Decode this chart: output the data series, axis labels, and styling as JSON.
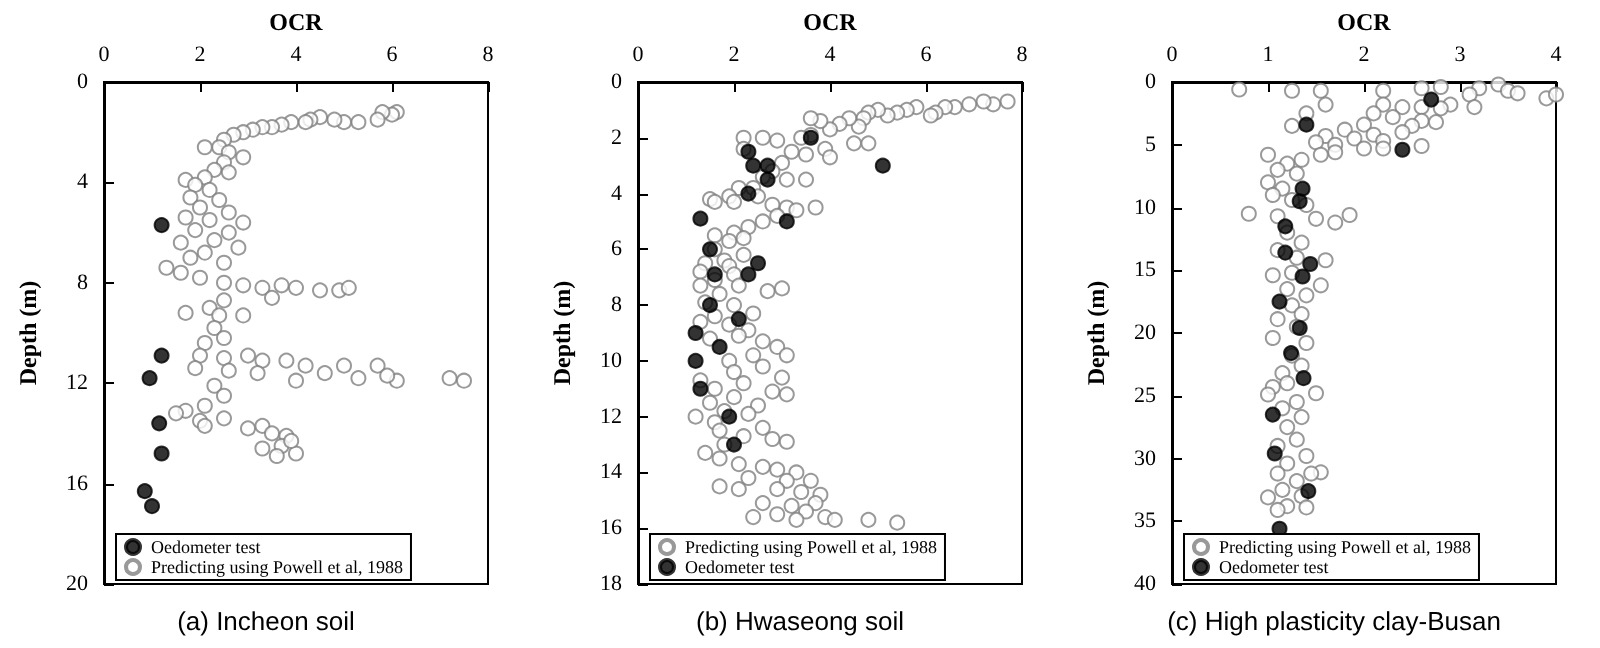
{
  "chart_data": [
    {
      "type": "scatter",
      "title": "(a) Incheon soil",
      "xlabel": "OCR",
      "ylabel": "Depth (m)",
      "xlim": [
        0,
        8
      ],
      "xticks": [
        0,
        2,
        4,
        6,
        8
      ],
      "ylim": [
        20,
        0
      ],
      "yticks": [
        0,
        4,
        8,
        12,
        16,
        20
      ],
      "grid": false,
      "legend": "bottom",
      "marker": "circle",
      "series": [
        {
          "name": "Oedometer test",
          "color": "#000000",
          "x": [
            1.2,
            1.2,
            0.95,
            1.15,
            1.2,
            0.85,
            1.0
          ],
          "values": [
            5.7,
            10.9,
            11.8,
            13.6,
            14.8,
            16.3,
            16.9
          ]
        },
        {
          "name": "Predicting using Powell et al, 1988",
          "color": "#808080",
          "x": [
            6.1,
            6.0,
            5.8,
            5.7,
            5.3,
            5.0,
            4.8,
            4.5,
            4.3,
            4.2,
            3.9,
            3.7,
            3.5,
            3.3,
            3.1,
            2.9,
            2.7,
            2.5,
            2.4,
            2.1,
            2.6,
            2.9,
            2.5,
            2.3,
            2.6,
            2.1,
            1.7,
            1.9,
            2.2,
            1.8,
            2.4,
            2.0,
            2.6,
            1.7,
            2.2,
            2.9,
            1.9,
            2.6,
            2.3,
            1.6,
            2.8,
            2.1,
            1.8,
            2.5,
            1.3,
            1.6,
            2.0,
            2.5,
            2.9,
            3.3,
            3.7,
            4.0,
            4.5,
            4.9,
            5.1,
            3.5,
            2.5,
            2.2,
            1.7,
            2.4,
            2.9,
            2.3,
            2.5,
            2.1,
            2.0,
            2.5,
            3.0,
            3.3,
            3.8,
            4.2,
            4.6,
            5.0,
            5.3,
            5.7,
            6.1,
            5.9,
            7.2,
            7.5,
            4.0,
            3.2,
            2.6,
            1.9,
            2.3,
            2.5,
            2.1,
            1.7,
            1.5,
            2.0,
            2.5,
            2.1,
            3.0,
            3.3,
            3.5,
            3.8,
            3.7,
            3.3,
            3.6,
            4.0,
            3.9
          ],
          "values": [
            1.2,
            1.3,
            1.2,
            1.5,
            1.6,
            1.6,
            1.5,
            1.4,
            1.5,
            1.6,
            1.6,
            1.7,
            1.8,
            1.8,
            1.9,
            2.0,
            2.1,
            2.3,
            2.6,
            2.6,
            2.8,
            3.0,
            3.2,
            3.5,
            3.6,
            3.8,
            3.9,
            4.1,
            4.3,
            4.6,
            4.7,
            5.0,
            5.2,
            5.4,
            5.5,
            5.6,
            5.9,
            6.0,
            6.3,
            6.4,
            6.6,
            6.8,
            7.0,
            7.2,
            7.4,
            7.6,
            7.8,
            8.0,
            8.1,
            8.2,
            8.1,
            8.2,
            8.3,
            8.3,
            8.2,
            8.6,
            8.7,
            9.0,
            9.2,
            9.3,
            9.3,
            9.8,
            10.2,
            10.4,
            10.9,
            11.0,
            10.9,
            11.1,
            11.1,
            11.3,
            11.6,
            11.3,
            11.8,
            11.3,
            11.9,
            11.7,
            11.8,
            11.9,
            11.9,
            11.6,
            11.5,
            11.4,
            12.1,
            12.5,
            12.9,
            13.1,
            13.2,
            13.5,
            13.4,
            13.7,
            13.8,
            13.7,
            14.0,
            14.1,
            14.5,
            14.6,
            14.9,
            14.8,
            14.3
          ]
        }
      ]
    },
    {
      "type": "scatter",
      "title": "(b) Hwaseong soil",
      "xlabel": "OCR",
      "ylabel": "Depth (m)",
      "xlim": [
        0,
        8
      ],
      "xticks": [
        0,
        2,
        4,
        6,
        8
      ],
      "ylim": [
        18,
        0
      ],
      "yticks": [
        0,
        2,
        4,
        6,
        8,
        10,
        12,
        14,
        16,
        18
      ],
      "grid": false,
      "legend": "bottom",
      "marker": "circle",
      "series": [
        {
          "name": "Predicting using Powell et al, 1988",
          "color": "#808080",
          "x": [
            7.7,
            7.4,
            7.2,
            6.9,
            6.6,
            6.4,
            6.2,
            6.1,
            5.8,
            5.6,
            5.4,
            5.2,
            5.0,
            4.8,
            4.7,
            4.6,
            4.4,
            4.2,
            4.0,
            3.8,
            3.6,
            3.6,
            3.4,
            4.5,
            4.8,
            3.9,
            4.0,
            3.5,
            3.2,
            2.9,
            2.6,
            2.2,
            2.2,
            3.0,
            2.8,
            3.1,
            2.6,
            3.5,
            2.4,
            2.1,
            2.5,
            1.9,
            1.5,
            1.6,
            2.0,
            2.8,
            3.1,
            3.3,
            3.7,
            2.9,
            2.6,
            2.3,
            2.0,
            1.6,
            1.9,
            2.2,
            1.6,
            2.2,
            1.8,
            1.4,
            1.9,
            1.3,
            2.0,
            1.6,
            1.3,
            2.1,
            2.7,
            3.0,
            1.7,
            1.4,
            2.0,
            2.4,
            1.6,
            1.3,
            1.9,
            2.3,
            2.1,
            1.5,
            2.6,
            2.9,
            3.1,
            2.4,
            1.9,
            2.6,
            2.0,
            3.0,
            1.3,
            2.2,
            1.6,
            2.8,
            3.1,
            2.0,
            1.5,
            2.5,
            1.8,
            2.3,
            1.2,
            1.6,
            2.6,
            1.7,
            2.2,
            2.8,
            3.1,
            1.8,
            1.4,
            1.7,
            2.1,
            2.6,
            2.9,
            3.3,
            2.3,
            3.1,
            3.6,
            1.7,
            2.1,
            2.9,
            3.4,
            3.8,
            3.7,
            3.2,
            2.6,
            3.5,
            2.9,
            2.4,
            3.3,
            3.9,
            4.1,
            4.8,
            5.4
          ],
          "values": [
            0.7,
            0.8,
            0.7,
            0.8,
            0.9,
            0.9,
            1.1,
            1.2,
            0.9,
            1.0,
            1.1,
            1.2,
            1.0,
            1.1,
            1.3,
            1.6,
            1.3,
            1.5,
            1.7,
            1.4,
            1.3,
            1.9,
            2.0,
            2.2,
            2.2,
            2.4,
            2.7,
            2.6,
            2.5,
            2.1,
            2.0,
            2.0,
            2.4,
            2.9,
            3.2,
            3.5,
            3.4,
            3.5,
            3.8,
            3.8,
            4.1,
            4.1,
            4.2,
            4.3,
            4.3,
            4.4,
            4.5,
            4.6,
            4.5,
            4.8,
            5.0,
            5.2,
            5.4,
            5.5,
            5.7,
            5.6,
            6.0,
            6.2,
            6.4,
            6.5,
            6.6,
            6.8,
            6.9,
            7.1,
            7.3,
            7.3,
            7.5,
            7.4,
            7.6,
            7.9,
            8.0,
            8.3,
            8.4,
            8.6,
            8.7,
            8.9,
            9.1,
            9.2,
            9.3,
            9.5,
            9.8,
            9.8,
            10.0,
            10.2,
            10.4,
            10.6,
            10.7,
            10.8,
            11.0,
            11.1,
            11.2,
            11.3,
            11.5,
            11.6,
            11.8,
            11.9,
            12.0,
            12.2,
            12.4,
            12.5,
            12.7,
            12.8,
            12.9,
            13.0,
            13.3,
            13.5,
            13.7,
            13.8,
            13.9,
            14.0,
            14.2,
            14.3,
            14.3,
            14.5,
            14.6,
            14.6,
            14.7,
            14.8,
            15.1,
            15.2,
            15.1,
            15.4,
            15.5,
            15.6,
            15.7,
            15.6,
            15.7,
            15.7,
            15.8
          ]
        },
        {
          "name": "Oedometer test",
          "color": "#000000",
          "x": [
            3.6,
            2.3,
            2.4,
            2.7,
            2.7,
            5.1,
            2.3,
            1.3,
            3.1,
            1.5,
            2.5,
            1.6,
            2.3,
            1.5,
            2.1,
            1.2,
            1.7,
            1.2,
            1.3,
            1.9,
            2.0
          ],
          "values": [
            2.0,
            2.5,
            3.0,
            3.0,
            3.5,
            3.0,
            4.0,
            4.9,
            5.0,
            6.0,
            6.5,
            6.9,
            6.9,
            8.0,
            8.5,
            9.0,
            9.5,
            10.0,
            11.0,
            12.0,
            13.0
          ]
        }
      ]
    },
    {
      "type": "scatter",
      "title": "(c) High plasticity clay-Busan",
      "xlabel": "OCR",
      "ylabel": "Depth (m)",
      "xlim": [
        0,
        4
      ],
      "xticks": [
        0,
        1,
        2,
        3,
        4
      ],
      "ylim": [
        40,
        0
      ],
      "yticks": [
        0,
        5,
        10,
        15,
        20,
        25,
        30,
        35,
        40
      ],
      "grid": false,
      "legend": "bottom",
      "marker": "circle",
      "series": [
        {
          "name": "Predicting using Powell et al, 1988",
          "color": "#808080",
          "x": [
            0.7,
            1.25,
            1.55,
            2.2,
            2.6,
            2.8,
            3.2,
            3.4,
            3.5,
            3.6,
            3.1,
            3.9,
            4.0,
            3.15,
            2.9,
            2.8,
            2.6,
            2.4,
            2.2,
            1.6,
            2.1,
            2.3,
            2.6,
            2.75,
            2.5,
            2.4,
            1.4,
            1.25,
            2.0,
            1.8,
            2.1,
            2.2,
            2.6,
            1.9,
            1.6,
            1.5,
            1.7,
            2.0,
            2.2,
            1.7,
            1.55,
            1.35,
            1.2,
            1.0,
            1.1,
            1.3,
            1.0,
            1.15,
            1.05,
            1.25,
            1.4,
            0.8,
            1.1,
            1.5,
            1.7,
            1.85,
            1.2,
            1.35,
            1.1,
            1.3,
            1.6,
            1.05,
            1.25,
            1.55,
            1.2,
            1.4,
            1.25,
            1.1,
            1.35,
            1.3,
            1.05,
            1.4,
            1.25,
            1.35,
            1.15,
            1.05,
            1.2,
            1.0,
            1.5,
            1.3,
            1.15,
            1.35,
            1.2,
            1.3,
            1.1,
            1.4,
            1.2,
            1.1,
            1.55,
            1.45,
            1.3,
            1.15,
            1.35,
            1.0,
            1.2,
            1.4,
            1.1
          ],
          "values": [
            0.6,
            0.7,
            0.7,
            0.7,
            0.5,
            0.4,
            0.5,
            0.2,
            0.7,
            0.9,
            1.0,
            1.3,
            1.0,
            2.0,
            1.8,
            2.1,
            2.0,
            2.0,
            1.8,
            1.8,
            2.5,
            2.8,
            3.1,
            3.2,
            3.5,
            4.0,
            2.5,
            3.5,
            3.4,
            3.8,
            4.2,
            4.7,
            5.1,
            4.5,
            4.3,
            4.8,
            5.0,
            5.3,
            5.3,
            5.6,
            5.8,
            6.2,
            6.5,
            5.8,
            7.0,
            7.3,
            8.0,
            8.5,
            9.0,
            9.4,
            9.8,
            10.5,
            10.7,
            10.9,
            11.2,
            10.6,
            12.0,
            12.8,
            13.4,
            14.0,
            14.2,
            15.4,
            15.2,
            16.2,
            16.5,
            17.0,
            17.8,
            18.9,
            18.5,
            19.5,
            20.4,
            20.8,
            21.8,
            22.6,
            23.2,
            24.3,
            24.0,
            24.9,
            24.8,
            25.5,
            26.0,
            26.7,
            27.5,
            28.5,
            29.0,
            29.8,
            30.4,
            31.2,
            31.1,
            31.2,
            31.8,
            32.5,
            33.0,
            33.1,
            33.8,
            33.9,
            34.1
          ]
        },
        {
          "name": "Oedometer test",
          "color": "#000000",
          "x": [
            2.7,
            1.4,
            2.4,
            1.36,
            1.33,
            1.18,
            1.18,
            1.44,
            1.36,
            1.12,
            1.33,
            1.24,
            1.37,
            1.05,
            1.07,
            1.42,
            1.12
          ],
          "values": [
            1.4,
            3.4,
            5.4,
            8.5,
            9.5,
            11.5,
            13.6,
            14.5,
            15.5,
            17.5,
            19.6,
            21.6,
            23.6,
            26.5,
            29.6,
            32.6,
            35.6
          ]
        }
      ]
    }
  ]
}
